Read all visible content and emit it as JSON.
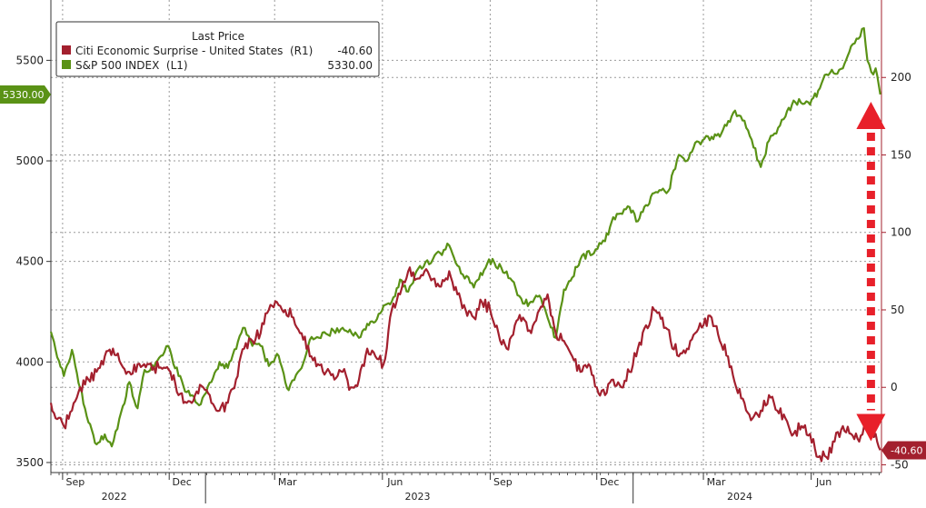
{
  "chart_data": {
    "type": "line",
    "legend": {
      "title": "Last Price",
      "placement": "top-left",
      "entries": [
        {
          "label": "Citi Economic Surprise - United States  (R1)",
          "value": "-40.60",
          "color": "#a3202e"
        },
        {
          "label": "S&P 500 INDEX  (L1)",
          "value": "5330.00",
          "color": "#5a9216"
        }
      ]
    },
    "left_axis": {
      "ylim": [
        3450,
        5800
      ],
      "ticks": [
        "3500",
        "4000",
        "4500",
        "5000",
        "5500"
      ]
    },
    "right_axis": {
      "ylim": [
        -55,
        250
      ],
      "ticks": [
        "-50",
        "0",
        "50",
        "100",
        "150",
        "200"
      ]
    },
    "x_axis": {
      "range": [
        "2022-08-22",
        "2024-07-31"
      ],
      "month_ticks": [
        {
          "label": "Sep",
          "date": "2022-09-01"
        },
        {
          "label": "Dec",
          "date": "2022-12-01"
        },
        {
          "label": "Mar",
          "date": "2023-03-01"
        },
        {
          "label": "Jun",
          "date": "2023-06-01"
        },
        {
          "label": "Sep",
          "date": "2023-09-01"
        },
        {
          "label": "Dec",
          "date": "2023-12-01"
        },
        {
          "label": "Mar",
          "date": "2024-03-01"
        },
        {
          "label": "Jun",
          "date": "2024-06-01"
        }
      ],
      "year_labels": [
        {
          "label": "2022",
          "date": "2022-10-15"
        },
        {
          "label": "2023",
          "date": "2023-07-01"
        },
        {
          "label": "2024",
          "date": "2024-04-01"
        }
      ]
    },
    "grid": true,
    "series": [
      {
        "name": "S&P 500 INDEX",
        "axis": "left",
        "color": "#5a9216",
        "last_label": "5330.00",
        "points": [
          [
            "2022-08-22",
            4150
          ],
          [
            "2022-08-26",
            4060
          ],
          [
            "2022-09-02",
            3930
          ],
          [
            "2022-09-09",
            4060
          ],
          [
            "2022-09-16",
            3870
          ],
          [
            "2022-09-23",
            3700
          ],
          [
            "2022-09-30",
            3590
          ],
          [
            "2022-10-07",
            3640
          ],
          [
            "2022-10-13",
            3580
          ],
          [
            "2022-10-21",
            3750
          ],
          [
            "2022-10-28",
            3900
          ],
          [
            "2022-11-04",
            3770
          ],
          [
            "2022-11-10",
            3960
          ],
          [
            "2022-11-18",
            3970
          ],
          [
            "2022-11-30",
            4080
          ],
          [
            "2022-12-09",
            3930
          ],
          [
            "2022-12-16",
            3850
          ],
          [
            "2022-12-28",
            3790
          ],
          [
            "2023-01-06",
            3900
          ],
          [
            "2023-01-13",
            4000
          ],
          [
            "2023-01-20",
            3970
          ],
          [
            "2023-02-02",
            4170
          ],
          [
            "2023-02-10",
            4080
          ],
          [
            "2023-02-17",
            4080
          ],
          [
            "2023-02-24",
            3980
          ],
          [
            "2023-03-03",
            4040
          ],
          [
            "2023-03-13",
            3860
          ],
          [
            "2023-03-24",
            3970
          ],
          [
            "2023-03-31",
            4110
          ],
          [
            "2023-04-14",
            4140
          ],
          [
            "2023-04-28",
            4170
          ],
          [
            "2023-05-12",
            4120
          ],
          [
            "2023-05-19",
            4190
          ],
          [
            "2023-05-26",
            4200
          ],
          [
            "2023-06-02",
            4280
          ],
          [
            "2023-06-09",
            4300
          ],
          [
            "2023-06-16",
            4410
          ],
          [
            "2023-06-23",
            4350
          ],
          [
            "2023-06-30",
            4450
          ],
          [
            "2023-07-14",
            4510
          ],
          [
            "2023-07-28",
            4580
          ],
          [
            "2023-08-04",
            4480
          ],
          [
            "2023-08-18",
            4370
          ],
          [
            "2023-08-31",
            4510
          ],
          [
            "2023-09-15",
            4450
          ],
          [
            "2023-09-29",
            4290
          ],
          [
            "2023-10-06",
            4300
          ],
          [
            "2023-10-13",
            4330
          ],
          [
            "2023-10-20",
            4220
          ],
          [
            "2023-10-27",
            4120
          ],
          [
            "2023-11-03",
            4360
          ],
          [
            "2023-11-10",
            4420
          ],
          [
            "2023-11-17",
            4510
          ],
          [
            "2023-11-30",
            4560
          ],
          [
            "2023-12-08",
            4600
          ],
          [
            "2023-12-15",
            4720
          ],
          [
            "2023-12-29",
            4770
          ],
          [
            "2024-01-05",
            4700
          ],
          [
            "2024-01-12",
            4780
          ],
          [
            "2024-01-19",
            4840
          ],
          [
            "2024-01-31",
            4850
          ],
          [
            "2024-02-09",
            5030
          ],
          [
            "2024-02-16",
            5000
          ],
          [
            "2024-02-23",
            5090
          ],
          [
            "2024-03-08",
            5120
          ],
          [
            "2024-03-15",
            5120
          ],
          [
            "2024-03-28",
            5250
          ],
          [
            "2024-04-05",
            5200
          ],
          [
            "2024-04-19",
            4970
          ],
          [
            "2024-04-26",
            5100
          ],
          [
            "2024-05-10",
            5220
          ],
          [
            "2024-05-17",
            5300
          ],
          [
            "2024-05-31",
            5280
          ],
          [
            "2024-06-07",
            5350
          ],
          [
            "2024-06-14",
            5430
          ],
          [
            "2024-06-28",
            5460
          ],
          [
            "2024-07-05",
            5570
          ],
          [
            "2024-07-16",
            5660
          ],
          [
            "2024-07-19",
            5500
          ],
          [
            "2024-07-24",
            5430
          ],
          [
            "2024-07-26",
            5460
          ],
          [
            "2024-07-30",
            5330
          ]
        ]
      },
      {
        "name": "Citi Economic Surprise - United States",
        "axis": "right",
        "color": "#a3202e",
        "last_label": "-40.60",
        "points": [
          [
            "2022-08-22",
            -10
          ],
          [
            "2022-08-26",
            -20
          ],
          [
            "2022-09-02",
            -25
          ],
          [
            "2022-09-09",
            -15
          ],
          [
            "2022-09-16",
            0
          ],
          [
            "2022-09-23",
            5
          ],
          [
            "2022-09-30",
            10
          ],
          [
            "2022-10-07",
            20
          ],
          [
            "2022-10-14",
            25
          ],
          [
            "2022-10-21",
            15
          ],
          [
            "2022-10-28",
            10
          ],
          [
            "2022-11-04",
            15
          ],
          [
            "2022-11-11",
            13
          ],
          [
            "2022-11-18",
            13
          ],
          [
            "2022-11-25",
            12
          ],
          [
            "2022-12-02",
            10
          ],
          [
            "2022-12-09",
            -5
          ],
          [
            "2022-12-16",
            -10
          ],
          [
            "2022-12-23",
            -5
          ],
          [
            "2022-12-30",
            0
          ],
          [
            "2023-01-06",
            -10
          ],
          [
            "2023-01-13",
            -15
          ],
          [
            "2023-01-20",
            -10
          ],
          [
            "2023-01-27",
            5
          ],
          [
            "2023-02-03",
            25
          ],
          [
            "2023-02-10",
            30
          ],
          [
            "2023-02-17",
            35
          ],
          [
            "2023-02-24",
            50
          ],
          [
            "2023-03-03",
            55
          ],
          [
            "2023-03-10",
            50
          ],
          [
            "2023-03-17",
            45
          ],
          [
            "2023-03-24",
            35
          ],
          [
            "2023-03-31",
            20
          ],
          [
            "2023-04-07",
            15
          ],
          [
            "2023-04-14",
            10
          ],
          [
            "2023-04-21",
            5
          ],
          [
            "2023-04-28",
            10
          ],
          [
            "2023-05-05",
            0
          ],
          [
            "2023-05-12",
            5
          ],
          [
            "2023-05-19",
            25
          ],
          [
            "2023-05-26",
            20
          ],
          [
            "2023-06-02",
            15
          ],
          [
            "2023-06-09",
            50
          ],
          [
            "2023-06-16",
            60
          ],
          [
            "2023-06-23",
            75
          ],
          [
            "2023-06-30",
            70
          ],
          [
            "2023-07-07",
            75
          ],
          [
            "2023-07-14",
            70
          ],
          [
            "2023-07-21",
            65
          ],
          [
            "2023-07-28",
            75
          ],
          [
            "2023-08-04",
            60
          ],
          [
            "2023-08-11",
            50
          ],
          [
            "2023-08-18",
            45
          ],
          [
            "2023-08-25",
            55
          ],
          [
            "2023-09-01",
            50
          ],
          [
            "2023-09-08",
            35
          ],
          [
            "2023-09-15",
            25
          ],
          [
            "2023-09-22",
            40
          ],
          [
            "2023-09-29",
            45
          ],
          [
            "2023-10-06",
            35
          ],
          [
            "2023-10-13",
            50
          ],
          [
            "2023-10-20",
            60
          ],
          [
            "2023-10-27",
            35
          ],
          [
            "2023-11-03",
            30
          ],
          [
            "2023-11-10",
            20
          ],
          [
            "2023-11-17",
            10
          ],
          [
            "2023-11-24",
            15
          ],
          [
            "2023-12-01",
            0
          ],
          [
            "2023-12-08",
            -5
          ],
          [
            "2023-12-15",
            5
          ],
          [
            "2023-12-22",
            0
          ],
          [
            "2023-12-29",
            10
          ],
          [
            "2024-01-05",
            25
          ],
          [
            "2024-01-12",
            40
          ],
          [
            "2024-01-19",
            50
          ],
          [
            "2024-01-26",
            45
          ],
          [
            "2024-02-02",
            30
          ],
          [
            "2024-02-09",
            20
          ],
          [
            "2024-02-16",
            25
          ],
          [
            "2024-02-23",
            35
          ],
          [
            "2024-03-01",
            40
          ],
          [
            "2024-03-08",
            45
          ],
          [
            "2024-03-15",
            30
          ],
          [
            "2024-03-22",
            20
          ],
          [
            "2024-03-29",
            0
          ],
          [
            "2024-04-05",
            -10
          ],
          [
            "2024-04-12",
            -20
          ],
          [
            "2024-04-19",
            -15
          ],
          [
            "2024-04-26",
            -5
          ],
          [
            "2024-05-03",
            -15
          ],
          [
            "2024-05-10",
            -20
          ],
          [
            "2024-05-17",
            -30
          ],
          [
            "2024-05-24",
            -25
          ],
          [
            "2024-05-31",
            -30
          ],
          [
            "2024-06-07",
            -45
          ],
          [
            "2024-06-14",
            -45
          ],
          [
            "2024-06-21",
            -35
          ],
          [
            "2024-06-28",
            -25
          ],
          [
            "2024-07-05",
            -30
          ],
          [
            "2024-07-12",
            -35
          ],
          [
            "2024-07-19",
            -25
          ],
          [
            "2024-07-26",
            -30
          ],
          [
            "2024-07-30",
            -40.6
          ]
        ]
      }
    ],
    "annotations": [
      {
        "type": "double-arrow",
        "color": "#e8202a",
        "date": "2024-07-22",
        "from_value": 5330,
        "from_axis": "left",
        "to_value": -40.6,
        "to_axis": "right"
      }
    ]
  }
}
